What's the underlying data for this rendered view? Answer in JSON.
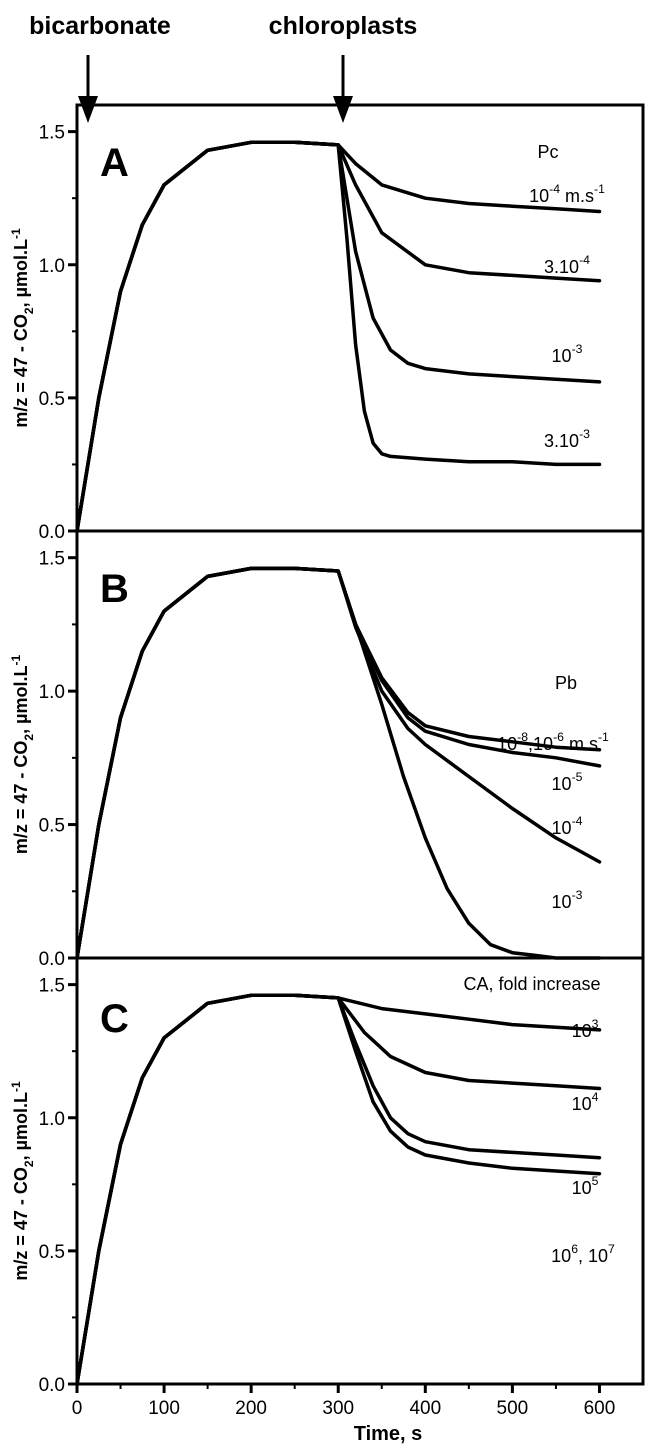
{
  "annotations": {
    "bicarbonate": "bicarbonate",
    "chloroplasts": "chloroplasts"
  },
  "chart_data": [
    {
      "type": "line",
      "panel": "A",
      "ylabel_parts": [
        "m/z = 47 - CO",
        "2",
        ", µmol.L",
        "-1"
      ],
      "xlim": [
        0,
        650
      ],
      "ylim": [
        0,
        1.6
      ],
      "yticks": [
        "0.0",
        "0.5",
        "1.0",
        "1.5"
      ],
      "legend_title": "Pc",
      "series": [
        {
          "name": "10-4 m.s-1",
          "x": [
            0,
            25,
            50,
            75,
            100,
            150,
            200,
            250,
            300,
            320,
            350,
            400,
            450,
            500,
            550,
            600
          ],
          "y": [
            0.0,
            0.5,
            0.9,
            1.15,
            1.3,
            1.43,
            1.46,
            1.46,
            1.45,
            1.38,
            1.3,
            1.25,
            1.23,
            1.22,
            1.21,
            1.2
          ]
        },
        {
          "name": "3.10-4",
          "x": [
            0,
            25,
            50,
            75,
            100,
            150,
            200,
            250,
            300,
            320,
            350,
            400,
            450,
            500,
            550,
            600
          ],
          "y": [
            0.0,
            0.5,
            0.9,
            1.15,
            1.3,
            1.43,
            1.46,
            1.46,
            1.45,
            1.3,
            1.12,
            1.0,
            0.97,
            0.96,
            0.95,
            0.94
          ]
        },
        {
          "name": "10-3",
          "x": [
            0,
            25,
            50,
            75,
            100,
            150,
            200,
            250,
            300,
            310,
            320,
            340,
            360,
            380,
            400,
            450,
            500,
            550,
            600
          ],
          "y": [
            0.0,
            0.5,
            0.9,
            1.15,
            1.3,
            1.43,
            1.46,
            1.46,
            1.45,
            1.25,
            1.05,
            0.8,
            0.68,
            0.63,
            0.61,
            0.59,
            0.58,
            0.57,
            0.56
          ]
        },
        {
          "name": "3.10-3",
          "x": [
            0,
            25,
            50,
            75,
            100,
            150,
            200,
            250,
            300,
            310,
            320,
            330,
            340,
            350,
            360,
            400,
            450,
            500,
            550,
            600
          ],
          "y": [
            0.0,
            0.5,
            0.9,
            1.15,
            1.3,
            1.43,
            1.46,
            1.46,
            1.45,
            1.1,
            0.7,
            0.45,
            0.33,
            0.29,
            0.28,
            0.27,
            0.26,
            0.26,
            0.25,
            0.25
          ]
        }
      ],
      "curve_labels": [
        {
          "base": "10",
          "sup": "-4",
          "tail": " m.s",
          "sup2": "-1"
        },
        {
          "base": "3.10",
          "sup": "-4",
          "tail": "",
          "sup2": ""
        },
        {
          "base": "10",
          "sup": "-3",
          "tail": "",
          "sup2": ""
        },
        {
          "base": "3.10",
          "sup": "-3",
          "tail": "",
          "sup2": ""
        }
      ]
    },
    {
      "type": "line",
      "panel": "B",
      "ylabel_parts": [
        "m/z = 47 - CO",
        "2",
        ", µmol.L",
        "-1"
      ],
      "xlim": [
        0,
        650
      ],
      "ylim": [
        0,
        1.6
      ],
      "yticks": [
        "0.0",
        "0.5",
        "1.0",
        "1.5"
      ],
      "legend_title": "Pb",
      "series": [
        {
          "name": "10-8,10-6 m.s-1",
          "x": [
            0,
            25,
            50,
            75,
            100,
            150,
            200,
            250,
            300,
            320,
            350,
            380,
            400,
            450,
            500,
            550,
            600
          ],
          "y": [
            0.0,
            0.5,
            0.9,
            1.15,
            1.3,
            1.43,
            1.46,
            1.46,
            1.45,
            1.25,
            1.05,
            0.92,
            0.87,
            0.83,
            0.81,
            0.79,
            0.78
          ]
        },
        {
          "name": "10-5",
          "x": [
            0,
            25,
            50,
            75,
            100,
            150,
            200,
            250,
            300,
            320,
            350,
            380,
            400,
            450,
            500,
            550,
            600
          ],
          "y": [
            0.0,
            0.5,
            0.9,
            1.15,
            1.3,
            1.43,
            1.46,
            1.46,
            1.45,
            1.25,
            1.04,
            0.9,
            0.85,
            0.8,
            0.77,
            0.75,
            0.72
          ]
        },
        {
          "name": "10-4",
          "x": [
            0,
            25,
            50,
            75,
            100,
            150,
            200,
            250,
            300,
            320,
            350,
            380,
            400,
            450,
            500,
            550,
            600
          ],
          "y": [
            0.0,
            0.5,
            0.9,
            1.15,
            1.3,
            1.43,
            1.46,
            1.46,
            1.45,
            1.24,
            1.0,
            0.86,
            0.8,
            0.68,
            0.56,
            0.45,
            0.36
          ]
        },
        {
          "name": "10-3",
          "x": [
            0,
            25,
            50,
            75,
            100,
            150,
            200,
            250,
            300,
            325,
            350,
            375,
            400,
            425,
            450,
            475,
            500,
            525,
            550,
            600
          ],
          "y": [
            0.0,
            0.5,
            0.9,
            1.15,
            1.3,
            1.43,
            1.46,
            1.46,
            1.45,
            1.2,
            0.95,
            0.68,
            0.45,
            0.26,
            0.13,
            0.05,
            0.02,
            0.01,
            0.0,
            0.0
          ]
        }
      ],
      "curve_labels": [
        {
          "base": "10",
          "sup": "-8",
          "tail": ",10",
          "sup2": "-6",
          "tail2": " m.s",
          "sup3": "-1"
        },
        {
          "base": "10",
          "sup": "-5"
        },
        {
          "base": "10",
          "sup": "-4"
        },
        {
          "base": "10",
          "sup": "-3"
        }
      ]
    },
    {
      "type": "line",
      "panel": "C",
      "ylabel_parts": [
        "m/z = 47 - CO",
        "2",
        ", µmol.L",
        "-1"
      ],
      "xlabel": "Time, s",
      "xlim": [
        0,
        650
      ],
      "ylim": [
        0,
        1.6
      ],
      "xticks": [
        "0",
        "100",
        "200",
        "300",
        "400",
        "500",
        "600"
      ],
      "yticks": [
        "0.0",
        "0.5",
        "1.0",
        "1.5"
      ],
      "legend_title": "CA, fold increase",
      "series": [
        {
          "name": "10^3",
          "x": [
            0,
            25,
            50,
            75,
            100,
            150,
            200,
            250,
            300,
            350,
            400,
            450,
            500,
            550,
            600
          ],
          "y": [
            0.0,
            0.5,
            0.9,
            1.15,
            1.3,
            1.43,
            1.46,
            1.46,
            1.45,
            1.41,
            1.39,
            1.37,
            1.35,
            1.34,
            1.33
          ]
        },
        {
          "name": "10^4",
          "x": [
            0,
            25,
            50,
            75,
            100,
            150,
            200,
            250,
            300,
            330,
            360,
            400,
            450,
            500,
            550,
            600
          ],
          "y": [
            0.0,
            0.5,
            0.9,
            1.15,
            1.3,
            1.43,
            1.46,
            1.46,
            1.45,
            1.32,
            1.23,
            1.17,
            1.14,
            1.13,
            1.12,
            1.11
          ]
        },
        {
          "name": "10^5",
          "x": [
            0,
            25,
            50,
            75,
            100,
            150,
            200,
            250,
            300,
            320,
            340,
            360,
            380,
            400,
            450,
            500,
            550,
            600
          ],
          "y": [
            0.0,
            0.5,
            0.9,
            1.15,
            1.3,
            1.43,
            1.46,
            1.46,
            1.45,
            1.28,
            1.12,
            1.0,
            0.94,
            0.91,
            0.88,
            0.87,
            0.86,
            0.85
          ]
        },
        {
          "name": "10^6, 10^7",
          "x": [
            0,
            25,
            50,
            75,
            100,
            150,
            200,
            250,
            300,
            320,
            340,
            360,
            380,
            400,
            450,
            500,
            550,
            600
          ],
          "y": [
            0.0,
            0.5,
            0.9,
            1.15,
            1.3,
            1.43,
            1.46,
            1.46,
            1.45,
            1.25,
            1.06,
            0.95,
            0.89,
            0.86,
            0.83,
            0.81,
            0.8,
            0.79
          ]
        }
      ],
      "curve_labels": [
        {
          "base": "10",
          "sup": "3"
        },
        {
          "base": "10",
          "sup": "4"
        },
        {
          "base": "10",
          "sup": "5"
        },
        {
          "base": "10",
          "sup": "6",
          "tail": ", 10",
          "sup2": "7"
        }
      ]
    }
  ]
}
